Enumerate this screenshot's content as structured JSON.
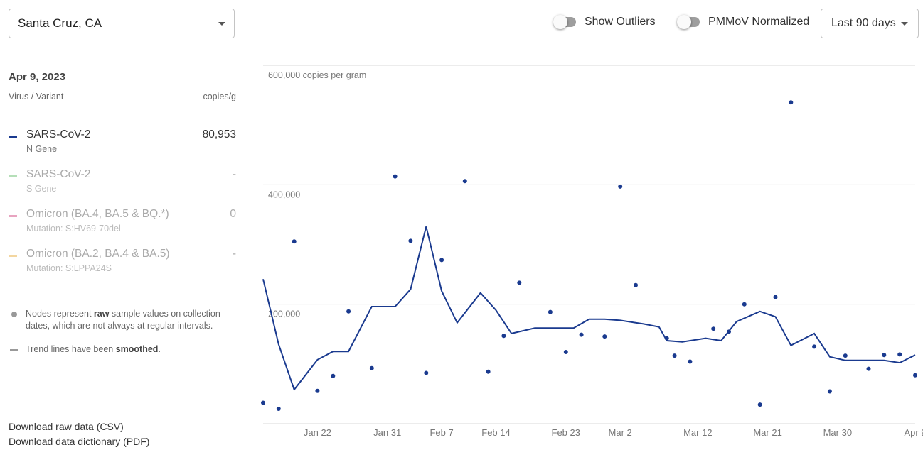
{
  "location": {
    "value": "Santa Cruz, CA"
  },
  "toggles": {
    "outliers_label": "Show Outliers",
    "normalized_label": "PMMoV Normalized"
  },
  "range": {
    "value": "Last 90 days"
  },
  "sidebar": {
    "date": "Apr 9, 2023",
    "col_left": "Virus / Variant",
    "col_right": "copies/g",
    "items": [
      {
        "name": "SARS-CoV-2",
        "sub": "N Gene",
        "value": "80,953",
        "color": "#1a3a8f"
      },
      {
        "name": "SARS-CoV-2",
        "sub": "S Gene",
        "value": "-",
        "color": "#b5dfb8"
      },
      {
        "name": "Omicron (BA.4, BA.5 & BQ.*)",
        "sub": "Mutation: S:HV69-70del",
        "value": "0",
        "color": "#e8a4c0"
      },
      {
        "name": "Omicron (BA.2, BA.4 & BA.5)",
        "sub": "Mutation: S:LPPA24S",
        "value": "-",
        "color": "#f3d6a0"
      }
    ],
    "notes": {
      "nodes_pre": "Nodes represent ",
      "nodes_bold": "raw",
      "nodes_post": " sample values on collection dates, which are not always at regular intervals.",
      "trend_pre": "Trend lines have been ",
      "trend_bold": "smoothed",
      "trend_post": "."
    }
  },
  "downloads": {
    "csv": "Download raw data (CSV)",
    "pdf": "Download data dictionary (PDF)"
  },
  "chart_data": {
    "type": "scatter",
    "y_axis_label": "600,000 copies per gram",
    "y_ticks": [
      {
        "value": 0,
        "label": ""
      },
      {
        "value": 200000,
        "label": "200,000"
      },
      {
        "value": 400000,
        "label": "400,000"
      },
      {
        "value": 600000,
        "label": "600,000 copies per gram"
      }
    ],
    "ylim": [
      0,
      600000
    ],
    "x_ticks": [
      "Jan 22",
      "Jan 31",
      "Feb 7",
      "Feb 14",
      "Feb 23",
      "Mar 2",
      "Mar 12",
      "Mar 21",
      "Mar 30",
      "Apr 9"
    ],
    "x_domain": [
      "2023-01-15",
      "2023-04-09"
    ],
    "grid": true,
    "legend": "left",
    "colors": {
      "series": "#1a3a8f",
      "grid": "#d9d9d9"
    },
    "series": [
      {
        "name": "SARS-CoV-2",
        "kind": "points",
        "points": [
          {
            "x": "2023-01-15",
            "y": 35000
          },
          {
            "x": "2023-01-17",
            "y": 25000
          },
          {
            "x": "2023-01-19",
            "y": 305000
          },
          {
            "x": "2023-01-22",
            "y": 55000
          },
          {
            "x": "2023-01-24",
            "y": 80000
          },
          {
            "x": "2023-01-26",
            "y": 188000
          },
          {
            "x": "2023-01-29",
            "y": 93000
          },
          {
            "x": "2023-02-01",
            "y": 414000
          },
          {
            "x": "2023-02-03",
            "y": 306000
          },
          {
            "x": "2023-02-05",
            "y": 85000
          },
          {
            "x": "2023-02-07",
            "y": 274000
          },
          {
            "x": "2023-02-10",
            "y": 406000
          },
          {
            "x": "2023-02-13",
            "y": 87000
          },
          {
            "x": "2023-02-15",
            "y": 147000
          },
          {
            "x": "2023-02-17",
            "y": 236000
          },
          {
            "x": "2023-02-21",
            "y": 187000
          },
          {
            "x": "2023-02-23",
            "y": 120000
          },
          {
            "x": "2023-02-25",
            "y": 149000
          },
          {
            "x": "2023-02-28",
            "y": 146000
          },
          {
            "x": "2023-03-02",
            "y": 397000
          },
          {
            "x": "2023-03-04",
            "y": 232000
          },
          {
            "x": "2023-03-08",
            "y": 143000
          },
          {
            "x": "2023-03-09",
            "y": 114000
          },
          {
            "x": "2023-03-11",
            "y": 104000
          },
          {
            "x": "2023-03-14",
            "y": 159000
          },
          {
            "x": "2023-03-16",
            "y": 154000
          },
          {
            "x": "2023-03-18",
            "y": 200000
          },
          {
            "x": "2023-03-20",
            "y": 32000
          },
          {
            "x": "2023-03-22",
            "y": 212000
          },
          {
            "x": "2023-03-24",
            "y": 538000
          },
          {
            "x": "2023-03-27",
            "y": 129000
          },
          {
            "x": "2023-03-29",
            "y": 54000
          },
          {
            "x": "2023-03-31",
            "y": 114000
          },
          {
            "x": "2023-04-03",
            "y": 92000
          },
          {
            "x": "2023-04-05",
            "y": 115000
          },
          {
            "x": "2023-04-07",
            "y": 116000
          },
          {
            "x": "2023-04-09",
            "y": 81000
          }
        ]
      },
      {
        "name": "SARS-CoV-2",
        "kind": "trend",
        "points": [
          {
            "x": "2023-01-15",
            "y": 242000
          },
          {
            "x": "2023-01-17",
            "y": 133000
          },
          {
            "x": "2023-01-19",
            "y": 57000
          },
          {
            "x": "2023-01-22",
            "y": 107000
          },
          {
            "x": "2023-01-24",
            "y": 121000
          },
          {
            "x": "2023-01-26",
            "y": 121000
          },
          {
            "x": "2023-01-29",
            "y": 196000
          },
          {
            "x": "2023-02-01",
            "y": 196000
          },
          {
            "x": "2023-02-03",
            "y": 225000
          },
          {
            "x": "2023-02-05",
            "y": 330000
          },
          {
            "x": "2023-02-07",
            "y": 222000
          },
          {
            "x": "2023-02-09",
            "y": 169000
          },
          {
            "x": "2023-02-12",
            "y": 219000
          },
          {
            "x": "2023-02-14",
            "y": 190000
          },
          {
            "x": "2023-02-16",
            "y": 151000
          },
          {
            "x": "2023-02-19",
            "y": 160000
          },
          {
            "x": "2023-02-21",
            "y": 160000
          },
          {
            "x": "2023-02-24",
            "y": 160000
          },
          {
            "x": "2023-02-26",
            "y": 175000
          },
          {
            "x": "2023-02-28",
            "y": 175000
          },
          {
            "x": "2023-03-02",
            "y": 173000
          },
          {
            "x": "2023-03-05",
            "y": 167000
          },
          {
            "x": "2023-03-07",
            "y": 162000
          },
          {
            "x": "2023-03-08",
            "y": 139000
          },
          {
            "x": "2023-03-10",
            "y": 137000
          },
          {
            "x": "2023-03-13",
            "y": 143000
          },
          {
            "x": "2023-03-15",
            "y": 139000
          },
          {
            "x": "2023-03-17",
            "y": 171000
          },
          {
            "x": "2023-03-20",
            "y": 188000
          },
          {
            "x": "2023-03-22",
            "y": 179000
          },
          {
            "x": "2023-03-24",
            "y": 131000
          },
          {
            "x": "2023-03-27",
            "y": 151000
          },
          {
            "x": "2023-03-29",
            "y": 112000
          },
          {
            "x": "2023-03-31",
            "y": 106000
          },
          {
            "x": "2023-04-03",
            "y": 106000
          },
          {
            "x": "2023-04-05",
            "y": 106000
          },
          {
            "x": "2023-04-07",
            "y": 102000
          },
          {
            "x": "2023-04-09",
            "y": 115000
          }
        ]
      }
    ]
  }
}
